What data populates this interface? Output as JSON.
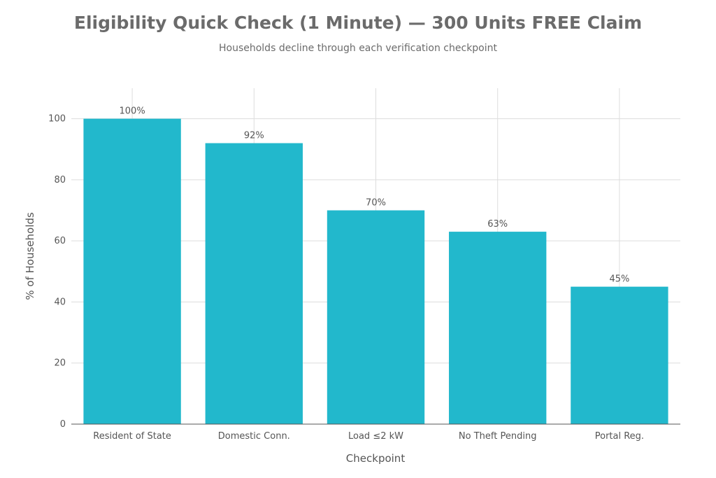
{
  "chart_data": {
    "type": "bar",
    "title": "Eligibility Quick Check (1 Minute) — 300 Units FREE Claim",
    "subtitle": "Households decline through each verification checkpoint",
    "xlabel": "Checkpoint",
    "ylabel": "% of Households",
    "categories": [
      "Resident of State",
      "Domestic Conn.",
      "Load ≤2 kW",
      "No Theft Pending",
      "Portal Reg."
    ],
    "values": [
      100,
      92,
      70,
      63,
      45
    ],
    "data_labels": [
      "100%",
      "92%",
      "70%",
      "63%",
      "45%"
    ],
    "ylim": [
      0,
      110
    ],
    "yticks": [
      0,
      20,
      40,
      60,
      80,
      100
    ],
    "grid": true,
    "bar_color": "#22b8cc",
    "grid_color": "#dddddd",
    "axis_color": "#555555"
  }
}
